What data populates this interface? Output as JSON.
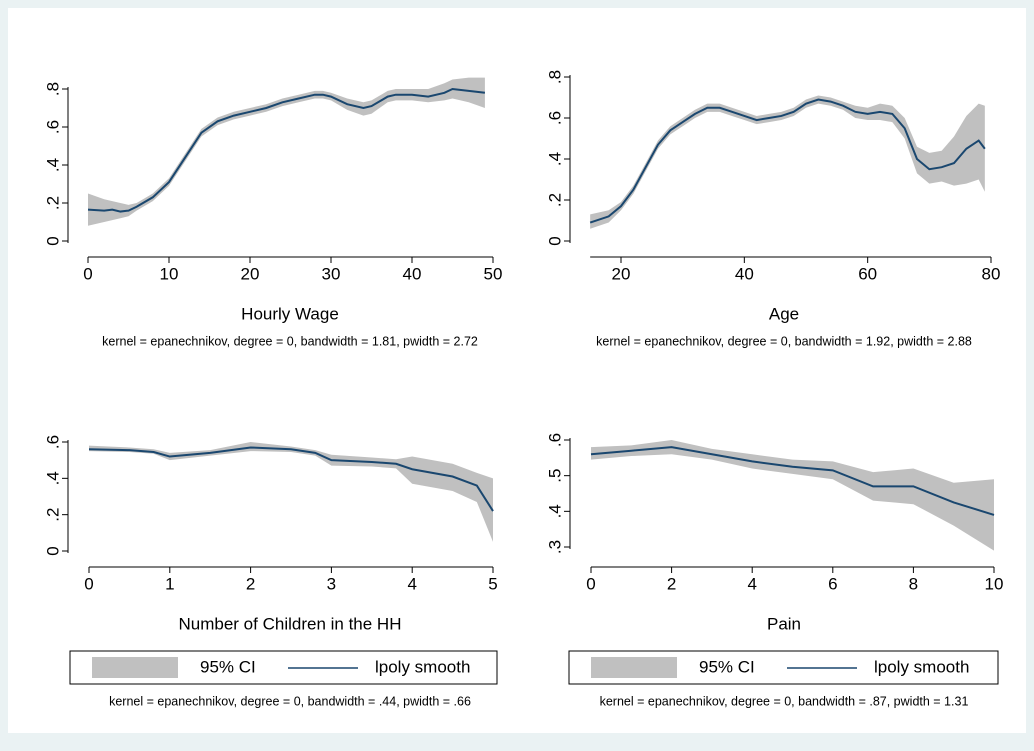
{
  "chart_data": [
    {
      "type": "line",
      "xlabel": "Hourly Wage",
      "note": "kernel = epanechnikov, degree = 0, bandwidth = 1.81, pwidth = 2.72",
      "x": [
        0,
        2,
        3,
        4,
        5,
        6,
        8,
        10,
        12,
        14,
        16,
        18,
        20,
        22,
        24,
        26,
        28,
        29,
        30,
        32,
        34,
        35,
        37,
        38,
        40,
        42,
        44,
        45,
        47,
        49
      ],
      "series": [
        {
          "color": "#c0c0c0",
          "lower": [
            0.08,
            0.1,
            0.11,
            0.12,
            0.13,
            0.16,
            0.21,
            0.29,
            0.42,
            0.55,
            0.61,
            0.64,
            0.66,
            0.68,
            0.71,
            0.73,
            0.75,
            0.75,
            0.74,
            0.69,
            0.66,
            0.67,
            0.73,
            0.74,
            0.74,
            0.73,
            0.74,
            0.75,
            0.73,
            0.7
          ],
          "upper": [
            0.25,
            0.22,
            0.21,
            0.2,
            0.19,
            0.2,
            0.25,
            0.33,
            0.46,
            0.59,
            0.65,
            0.68,
            0.7,
            0.72,
            0.75,
            0.77,
            0.79,
            0.79,
            0.78,
            0.75,
            0.73,
            0.74,
            0.79,
            0.8,
            0.8,
            0.8,
            0.83,
            0.85,
            0.86,
            0.86
          ]
        },
        {
          "color": "#1a476f",
          "values": [
            0.165,
            0.16,
            0.165,
            0.155,
            0.16,
            0.18,
            0.23,
            0.31,
            0.44,
            0.57,
            0.63,
            0.66,
            0.68,
            0.7,
            0.73,
            0.75,
            0.77,
            0.77,
            0.76,
            0.72,
            0.7,
            0.71,
            0.76,
            0.77,
            0.77,
            0.76,
            0.78,
            0.8,
            0.79,
            0.78
          ]
        }
      ],
      "xlim": [
        0,
        50
      ],
      "xticks": [
        0,
        10,
        20,
        30,
        40,
        50
      ],
      "ylim": [
        0,
        0.8
      ],
      "yticks": [
        0,
        {
          "value": 0.2,
          "label": ".2"
        },
        {
          "value": 0.4,
          "label": ".4"
        },
        {
          "value": 0.6,
          "label": ".6"
        },
        {
          "value": 0.8,
          "label": ".8"
        }
      ],
      "legend": false
    },
    {
      "type": "line",
      "xlabel": "Age",
      "note": "kernel = epanechnikov, degree = 0, bandwidth = 1.92, pwidth = 2.88",
      "x": [
        15,
        18,
        20,
        22,
        24,
        26,
        28,
        30,
        32,
        34,
        36,
        38,
        40,
        42,
        44,
        46,
        48,
        50,
        52,
        54,
        56,
        58,
        60,
        62,
        64,
        66,
        68,
        70,
        72,
        74,
        76,
        78,
        79
      ],
      "series": [
        {
          "color": "#c0c0c0",
          "lower": [
            0.06,
            0.09,
            0.15,
            0.23,
            0.34,
            0.45,
            0.52,
            0.56,
            0.6,
            0.63,
            0.63,
            0.61,
            0.59,
            0.57,
            0.58,
            0.59,
            0.61,
            0.65,
            0.67,
            0.66,
            0.64,
            0.6,
            0.59,
            0.59,
            0.58,
            0.5,
            0.33,
            0.28,
            0.29,
            0.27,
            0.28,
            0.3,
            0.24
          ],
          "upper": [
            0.13,
            0.15,
            0.19,
            0.27,
            0.38,
            0.49,
            0.56,
            0.6,
            0.64,
            0.67,
            0.67,
            0.65,
            0.63,
            0.61,
            0.62,
            0.63,
            0.65,
            0.69,
            0.71,
            0.7,
            0.68,
            0.66,
            0.65,
            0.67,
            0.66,
            0.6,
            0.46,
            0.43,
            0.44,
            0.51,
            0.61,
            0.67,
            0.66
          ]
        },
        {
          "color": "#1a476f",
          "values": [
            0.09,
            0.12,
            0.17,
            0.25,
            0.36,
            0.47,
            0.54,
            0.58,
            0.62,
            0.65,
            0.65,
            0.63,
            0.61,
            0.59,
            0.6,
            0.61,
            0.63,
            0.67,
            0.69,
            0.68,
            0.66,
            0.63,
            0.62,
            0.63,
            0.62,
            0.55,
            0.4,
            0.35,
            0.36,
            0.38,
            0.45,
            0.49,
            0.45
          ]
        }
      ],
      "xlim": [
        20,
        80
      ],
      "xticks": [
        20,
        40,
        60,
        80
      ],
      "ylim": [
        0,
        0.8
      ],
      "yticks": [
        0,
        {
          "value": 0.2,
          "label": ".2"
        },
        {
          "value": 0.4,
          "label": ".4"
        },
        {
          "value": 0.6,
          "label": ".6"
        },
        {
          "value": 0.8,
          "label": ".8"
        }
      ],
      "legend": false
    },
    {
      "type": "line",
      "xlabel": "Number of Children in the HH",
      "note": "kernel = epanechnikov, degree = 0, bandwidth = .44, pwidth = .66",
      "x": [
        0,
        0.5,
        0.8,
        1,
        1.5,
        2,
        2.5,
        2.8,
        3,
        3.5,
        3.8,
        4,
        4.5,
        4.8,
        5
      ],
      "series": [
        {
          "name": "95% CI",
          "color": "#c0c0c0",
          "lower": [
            0.55,
            0.545,
            0.535,
            0.5,
            0.525,
            0.55,
            0.545,
            0.525,
            0.47,
            0.465,
            0.455,
            0.37,
            0.33,
            0.27,
            0.05
          ],
          "upper": [
            0.58,
            0.57,
            0.56,
            0.54,
            0.555,
            0.6,
            0.575,
            0.555,
            0.53,
            0.515,
            0.505,
            0.52,
            0.48,
            0.43,
            0.4
          ]
        },
        {
          "name": "lpoly smooth",
          "color": "#1a476f",
          "values": [
            0.56,
            0.555,
            0.545,
            0.52,
            0.54,
            0.57,
            0.56,
            0.54,
            0.5,
            0.49,
            0.48,
            0.45,
            0.41,
            0.36,
            0.22
          ]
        }
      ],
      "xlim": [
        0,
        5
      ],
      "xticks": [
        0,
        1,
        2,
        3,
        4,
        5
      ],
      "ylim": [
        0,
        0.6
      ],
      "yticks": [
        0,
        {
          "value": 0.2,
          "label": ".2"
        },
        {
          "value": 0.4,
          "label": ".4"
        },
        {
          "value": 0.6,
          "label": ".6"
        }
      ],
      "legend": true
    },
    {
      "type": "line",
      "xlabel": "Pain",
      "note": "kernel = epanechnikov, degree = 0, bandwidth = .87, pwidth = 1.31",
      "x": [
        0,
        1,
        2,
        3,
        4,
        5,
        6,
        7,
        8,
        9,
        10
      ],
      "series": [
        {
          "name": "95% CI",
          "color": "#c0c0c0",
          "lower": [
            0.545,
            0.555,
            0.56,
            0.545,
            0.52,
            0.505,
            0.49,
            0.43,
            0.42,
            0.36,
            0.29
          ],
          "upper": [
            0.58,
            0.585,
            0.6,
            0.575,
            0.56,
            0.545,
            0.54,
            0.51,
            0.52,
            0.48,
            0.49
          ]
        },
        {
          "name": "lpoly smooth",
          "color": "#1a476f",
          "values": [
            0.56,
            0.57,
            0.58,
            0.56,
            0.54,
            0.525,
            0.515,
            0.47,
            0.47,
            0.425,
            0.39
          ]
        }
      ],
      "xlim": [
        0,
        10
      ],
      "xticks": [
        0,
        2,
        4,
        6,
        8,
        10
      ],
      "ylim": [
        0.3,
        0.6
      ],
      "yticks": [
        {
          "value": 0.3,
          "label": ".3"
        },
        {
          "value": 0.4,
          "label": ".4"
        },
        {
          "value": 0.5,
          "label": ".5"
        },
        {
          "value": 0.6,
          "label": ".6"
        }
      ],
      "legend": true
    }
  ]
}
